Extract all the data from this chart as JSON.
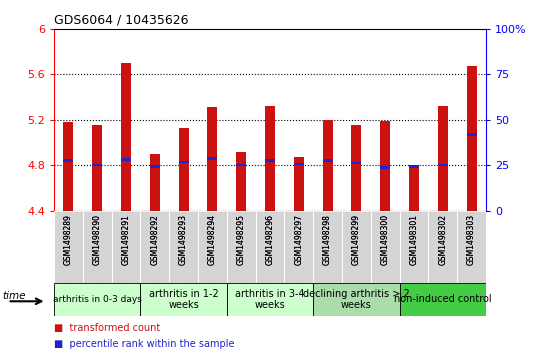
{
  "title": "GDS6064 / 10435626",
  "samples": [
    "GSM1498289",
    "GSM1498290",
    "GSM1498291",
    "GSM1498292",
    "GSM1498293",
    "GSM1498294",
    "GSM1498295",
    "GSM1498296",
    "GSM1498297",
    "GSM1498298",
    "GSM1498299",
    "GSM1498300",
    "GSM1498301",
    "GSM1498302",
    "GSM1498303"
  ],
  "bar_values": [
    5.18,
    5.15,
    5.7,
    4.9,
    5.13,
    5.31,
    4.92,
    5.32,
    4.87,
    5.2,
    5.15,
    5.19,
    4.78,
    5.32,
    5.67
  ],
  "percentile_values": [
    4.84,
    4.8,
    4.85,
    4.79,
    4.83,
    4.86,
    4.8,
    4.84,
    4.81,
    4.84,
    4.82,
    4.78,
    4.79,
    4.8,
    5.07
  ],
  "ymin": 4.4,
  "ymax": 6.0,
  "yticks": [
    4.4,
    4.8,
    5.2,
    5.6,
    6.0
  ],
  "ytick_labels": [
    "4.4",
    "4.8",
    "5.2",
    "5.6",
    "6"
  ],
  "right_yticks_pct": [
    0,
    25,
    50,
    75,
    100
  ],
  "right_ytick_labels": [
    "0",
    "25",
    "50",
    "75",
    "100%"
  ],
  "dotted_lines": [
    4.8,
    5.2,
    5.6
  ],
  "bar_color": "#cc1111",
  "percentile_color": "#2222cc",
  "bar_width": 0.35,
  "groups": [
    {
      "label": "arthritis in 0-3 days",
      "start": 0,
      "end": 3,
      "color": "#ccffcc",
      "fontsize": 6.5
    },
    {
      "label": "arthritis in 1-2\nweeks",
      "start": 3,
      "end": 6,
      "color": "#ccffcc",
      "fontsize": 7.0
    },
    {
      "label": "arthritis in 3-4\nweeks",
      "start": 6,
      "end": 9,
      "color": "#ccffcc",
      "fontsize": 7.0
    },
    {
      "label": "declining arthritis > 2\nweeks",
      "start": 9,
      "end": 12,
      "color": "#aaddaa",
      "fontsize": 7.0
    },
    {
      "label": "non-induced control",
      "start": 12,
      "end": 15,
      "color": "#44cc44",
      "fontsize": 7.0
    }
  ],
  "legend_bar_label": "transformed count",
  "legend_pct_label": "percentile rank within the sample",
  "xlabel_time": "time",
  "xtick_gray": "#d0d0d0",
  "plot_bg": "#ffffff"
}
